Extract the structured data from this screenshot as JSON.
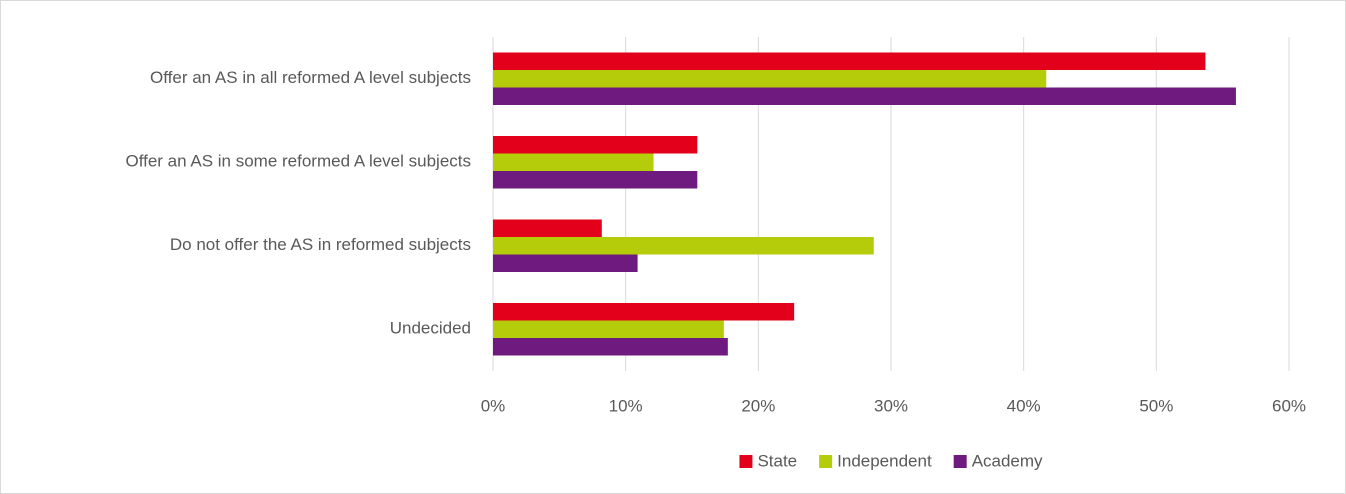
{
  "chart_data": {
    "type": "hbar",
    "categories": [
      "Offer an AS in all reformed A level subjects",
      "Offer an AS in some reformed A level subjects",
      "Do not offer the AS in reformed subjects",
      "Undecided"
    ],
    "series": [
      {
        "name": "State",
        "color": "#e2001a",
        "values": [
          53.7,
          15.4,
          8.2,
          22.7
        ]
      },
      {
        "name": "Independent",
        "color": "#b4cc0a",
        "values": [
          41.7,
          12.1,
          28.7,
          17.4
        ]
      },
      {
        "name": "Academy",
        "color": "#6e1a7e",
        "values": [
          56.0,
          15.4,
          10.9,
          17.7
        ]
      }
    ],
    "xlim": [
      0,
      60
    ],
    "xticks": [
      {
        "value": 0,
        "label": "0%"
      },
      {
        "value": 10,
        "label": "10%"
      },
      {
        "value": 20,
        "label": "20%"
      },
      {
        "value": 30,
        "label": "30%"
      },
      {
        "value": 40,
        "label": "40%"
      },
      {
        "value": 50,
        "label": "50%"
      },
      {
        "value": 60,
        "label": "60%"
      }
    ],
    "grid": true,
    "legend": "bottom"
  }
}
